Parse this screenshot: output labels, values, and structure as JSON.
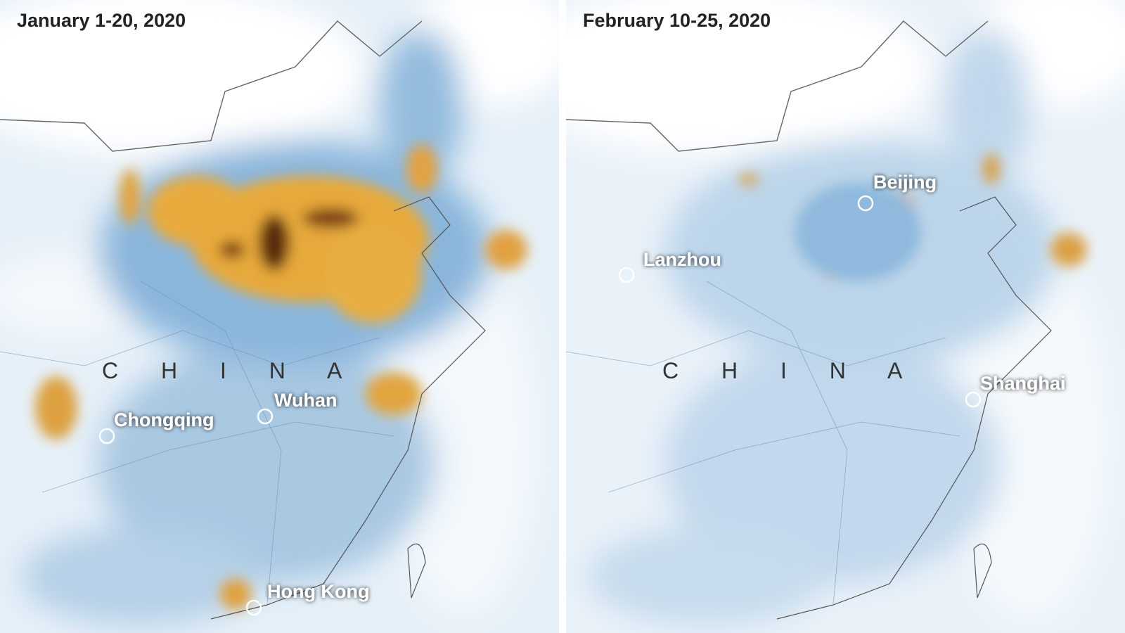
{
  "maps": [
    {
      "title": "January 1-20, 2020",
      "country": "C H I N A",
      "cities": [
        {
          "name": "Chongqing"
        },
        {
          "name": "Wuhan"
        },
        {
          "name": "Hong Kong"
        }
      ]
    },
    {
      "title": "February 10-25, 2020",
      "country": "C H I N A",
      "cities": [
        {
          "name": "Beijing"
        },
        {
          "name": "Lanzhou"
        },
        {
          "name": "Shanghai"
        }
      ]
    }
  ]
}
